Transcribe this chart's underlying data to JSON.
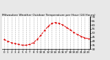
{
  "title": "Milwaukee Weather Outdoor Temperature per Hour (24 Hours)",
  "hours": [
    0,
    1,
    2,
    3,
    4,
    5,
    6,
    7,
    8,
    9,
    10,
    11,
    12,
    13,
    14,
    15,
    16,
    17,
    18,
    19,
    20,
    21,
    22,
    23
  ],
  "temps": [
    42,
    40,
    38,
    37,
    36,
    35,
    35,
    36,
    38,
    42,
    47,
    53,
    58,
    62,
    63,
    62,
    60,
    57,
    54,
    51,
    48,
    46,
    44,
    43
  ],
  "line_color": "#dd0000",
  "marker": "o",
  "marker_size": 1.2,
  "line_style": "--",
  "line_width": 0.7,
  "bg_color": "#e8e8e8",
  "plot_bg_color": "#ffffff",
  "grid_color": "#888888",
  "title_fontsize": 3.2,
  "tick_fontsize": 2.8,
  "ylim": [
    30,
    70
  ],
  "yticks": [
    30,
    35,
    40,
    45,
    50,
    55,
    60,
    65,
    70
  ]
}
